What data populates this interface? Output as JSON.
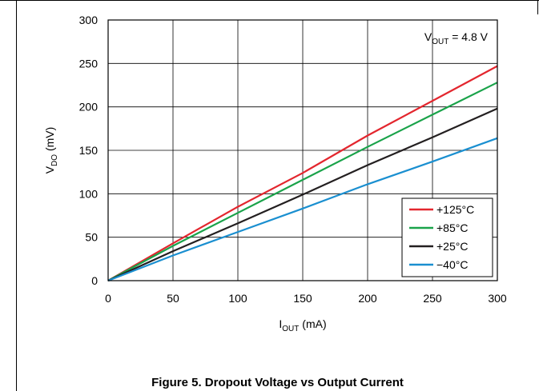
{
  "caption": "Figure 5. Dropout Voltage vs Output Current",
  "chart_data": {
    "type": "line",
    "title": "",
    "xlabel_main": "I",
    "xlabel_sub": "OUT",
    "xlabel_unit": " (mA)",
    "ylabel_main": "V",
    "ylabel_sub": "DO",
    "ylabel_unit": " (mV)",
    "xlim": [
      0,
      300
    ],
    "ylim": [
      0,
      300
    ],
    "xticks": [
      0,
      50,
      100,
      150,
      200,
      250,
      300
    ],
    "yticks": [
      0,
      50,
      100,
      150,
      200,
      250,
      300
    ],
    "grid": true,
    "legend_position": "bottom-right",
    "annotation": {
      "main": "V",
      "sub": "OUT",
      "rest": " = 4.8 V"
    },
    "series": [
      {
        "name": "+125°C",
        "color": "#e3262e",
        "x": [
          0,
          50,
          100,
          150,
          200,
          250,
          300
        ],
        "y": [
          0,
          43,
          85,
          124,
          167,
          207,
          247
        ]
      },
      {
        "name": "+85°C",
        "color": "#1aa34a",
        "x": [
          0,
          50,
          100,
          150,
          200,
          250,
          300
        ],
        "y": [
          0,
          40,
          78,
          116,
          154,
          191,
          228
        ]
      },
      {
        "name": "+25°C",
        "color": "#231f20",
        "x": [
          0,
          50,
          100,
          150,
          200,
          250,
          300
        ],
        "y": [
          0,
          34,
          66,
          99,
          133,
          165,
          198
        ]
      },
      {
        "name": "−40°C",
        "color": "#1a8fd0",
        "x": [
          0,
          50,
          100,
          150,
          200,
          250,
          300
        ],
        "y": [
          0,
          29,
          56,
          83,
          111,
          137,
          164
        ]
      }
    ]
  }
}
